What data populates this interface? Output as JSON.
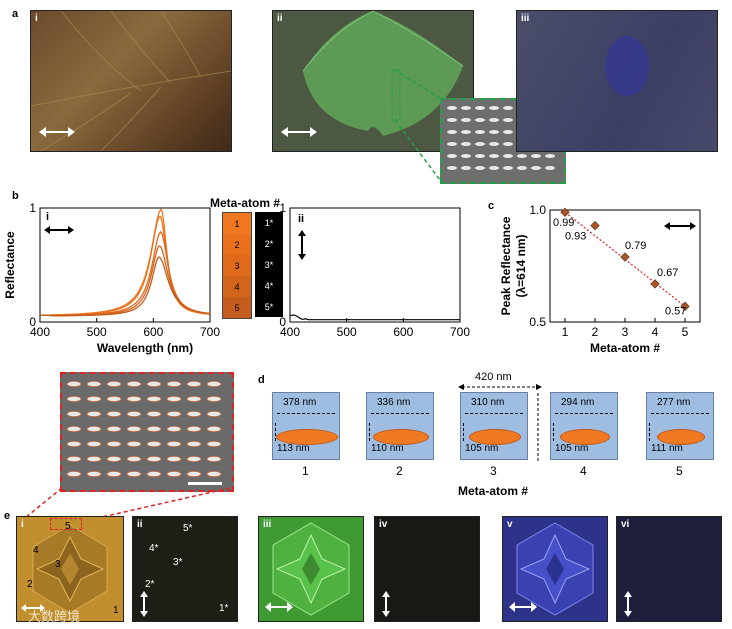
{
  "panel_labels": {
    "a": "a",
    "b": "b",
    "c": "c",
    "d": "d",
    "e": "e"
  },
  "panel_a": {
    "sub": [
      "i",
      "ii",
      "iii"
    ]
  },
  "panel_b": {
    "legend_title": "Meta-atom #",
    "orange_labels": [
      "1",
      "2",
      "3",
      "4",
      "5"
    ],
    "black_labels": [
      "1*",
      "2*",
      "3*",
      "4*",
      "5*"
    ],
    "orange_colors": [
      "#f07820",
      "#e9711d",
      "#df6a1c",
      "#d2641c",
      "#c35c1c"
    ],
    "chart_data": [
      {
        "type": "line",
        "subpanel": "i",
        "xlabel": "Wavelength (nm)",
        "ylabel": "Reflectance",
        "xlim": [
          400,
          700
        ],
        "ylim": [
          0,
          1
        ],
        "xticks": [
          "400",
          "500",
          "600",
          "700"
        ],
        "yticks": [
          "0",
          "1"
        ],
        "series": [
          {
            "name": "1",
            "peak_wavelength": 614,
            "peak": 0.99
          },
          {
            "name": "2",
            "peak_wavelength": 612,
            "peak": 0.93
          },
          {
            "name": "3",
            "peak_wavelength": 613,
            "peak": 0.79
          },
          {
            "name": "4",
            "peak_wavelength": 611,
            "peak": 0.67
          },
          {
            "name": "5",
            "peak_wavelength": 610,
            "peak": 0.57
          }
        ]
      },
      {
        "type": "line",
        "subpanel": "ii",
        "xlim": [
          400,
          700
        ],
        "ylim": [
          0,
          1
        ],
        "xticks": [
          "400",
          "500",
          "600",
          "700"
        ],
        "yticks": [
          "0",
          "1"
        ],
        "series": [
          {
            "name": "1*-5*",
            "note": "near-zero reflectance"
          }
        ]
      }
    ]
  },
  "panel_c": {
    "chart_data": {
      "type": "scatter",
      "ylabel": "Peak Reflectance",
      "ylabel2": "(λ=614 nm)",
      "xlabel": "Meta-atom #",
      "x": [
        1,
        2,
        3,
        4,
        5
      ],
      "y": [
        0.99,
        0.93,
        0.79,
        0.67,
        0.57
      ],
      "labels": [
        "0.99",
        "0.93",
        "0.79",
        "0.67",
        "0.57"
      ],
      "xticks": [
        "1",
        "2",
        "3",
        "4",
        "5"
      ],
      "yticks": [
        "1.0",
        "0.5"
      ],
      "ylim": [
        0.5,
        1.0
      ],
      "xlim": [
        0.5,
        5.5
      ]
    }
  },
  "panel_d": {
    "period": "420 nm",
    "xlabel": "Meta-atom #",
    "atoms": [
      {
        "num": "1",
        "width": "378 nm",
        "height": "113 nm"
      },
      {
        "num": "2",
        "width": "336 nm",
        "height": "110 nm"
      },
      {
        "num": "3",
        "width": "310 nm",
        "height": "105 nm"
      },
      {
        "num": "4",
        "width": "294 nm",
        "height": "105 nm"
      },
      {
        "num": "5",
        "width": "277 nm",
        "height": "111 nm"
      }
    ]
  },
  "panel_e": {
    "sub": [
      "i",
      "ii",
      "iii",
      "iv",
      "v",
      "vi"
    ],
    "region_labels": [
      "5",
      "4",
      "3",
      "2",
      "1"
    ],
    "region_labels_star": [
      "5*",
      "4*",
      "3*",
      "2*",
      "1*"
    ]
  },
  "watermark": "大数跨境"
}
